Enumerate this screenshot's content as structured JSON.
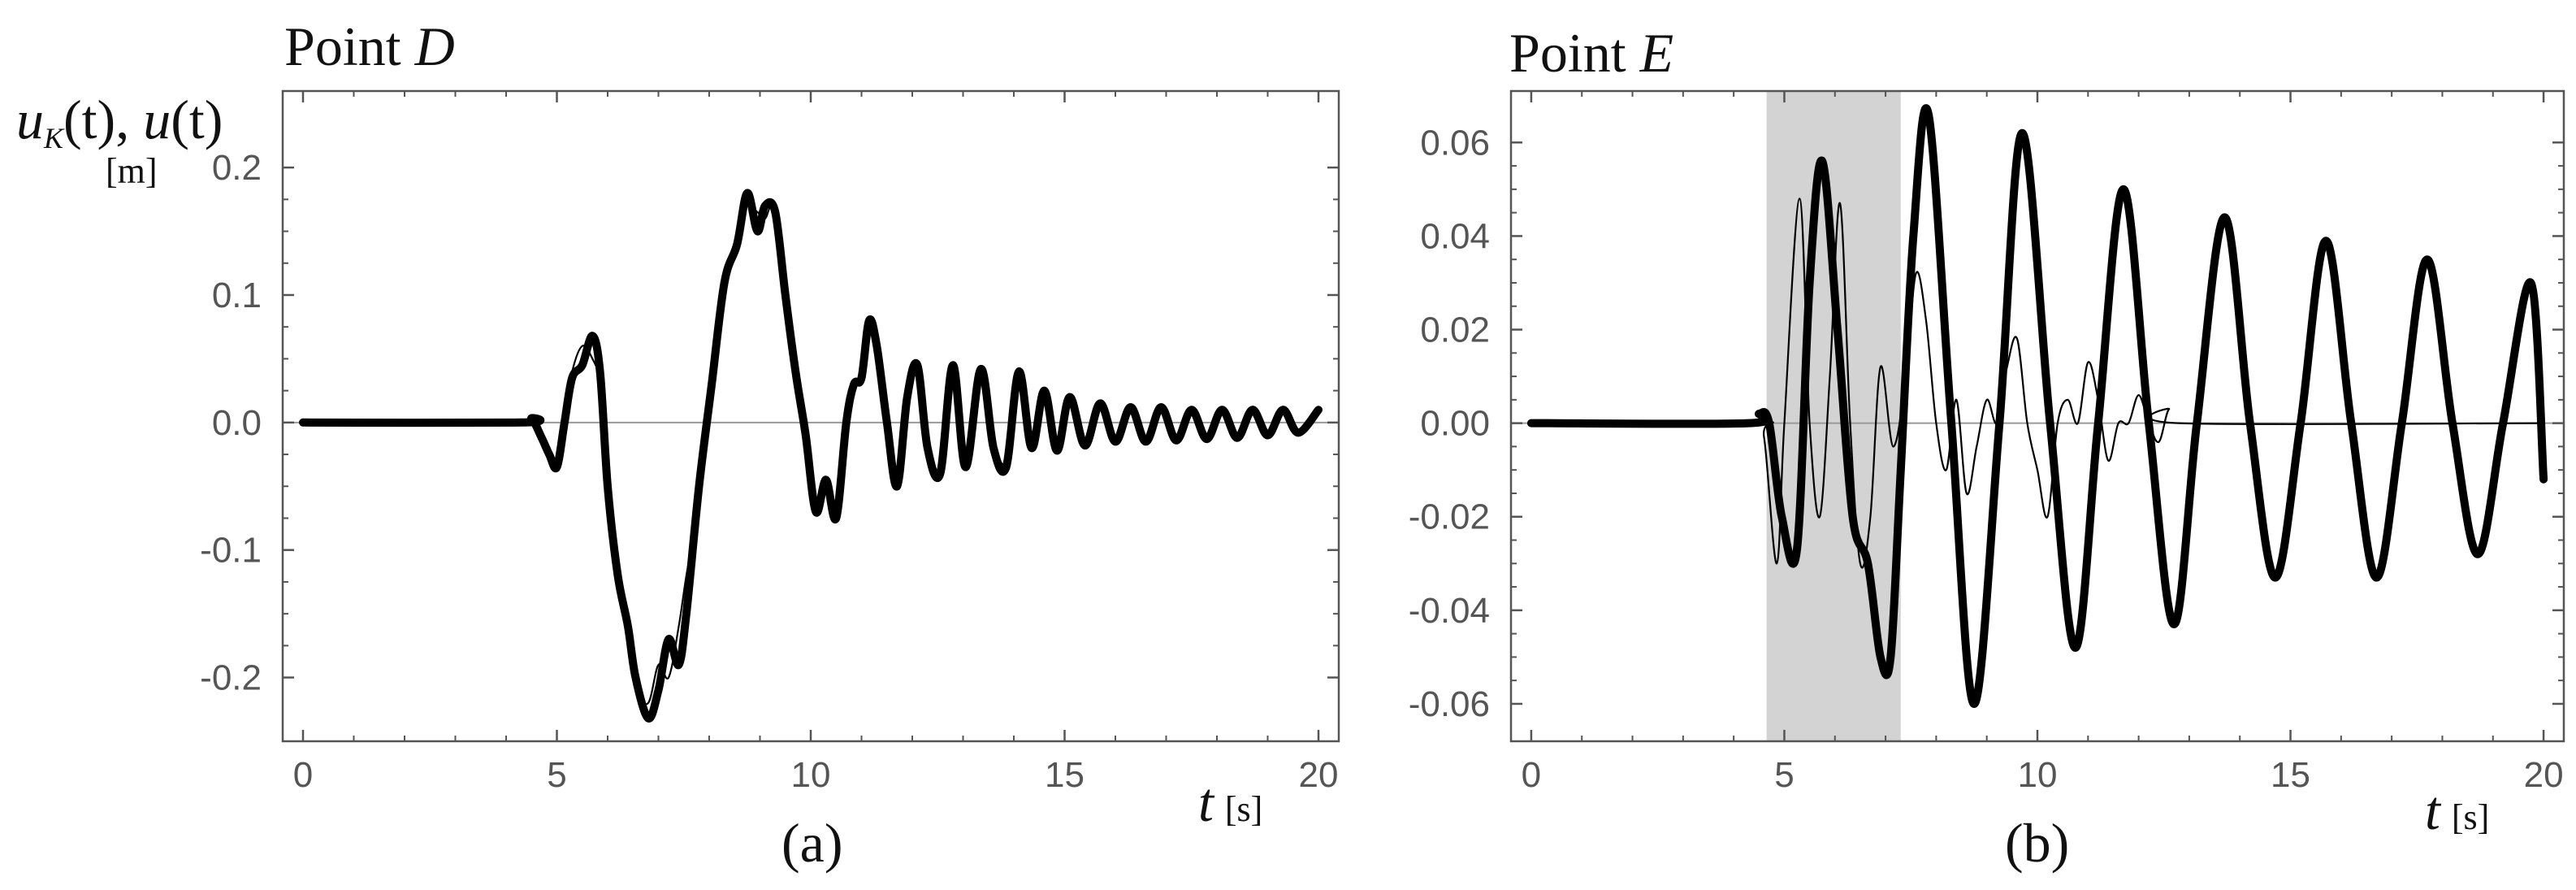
{
  "panels": [
    {
      "title_prefix": "Point ",
      "title_point": "D",
      "caption": "(a)"
    },
    {
      "title_prefix": "Point ",
      "title_point": "E",
      "caption": "(b)"
    }
  ],
  "ylabel": {
    "u": "u",
    "k": "K",
    "mid": "(t), ",
    "u2": "u",
    "end": "(t)",
    "unit": "[m]"
  },
  "xlabel": {
    "t": "t",
    "unit": "[s]"
  },
  "colors": {
    "curve": "#000000",
    "axis": "#555555",
    "zero_line": "#9a9a9a",
    "shade": "#d3d3d3"
  },
  "chart_data": [
    {
      "type": "line",
      "title": "Point D",
      "xlabel": "t [s]",
      "ylabel": "uK(t), u(t) [m]",
      "xlim": [
        -0.4,
        20.4
      ],
      "ylim": [
        -0.25,
        0.26
      ],
      "xticks": [
        0,
        5,
        10,
        15,
        20
      ],
      "xtick_labels": [
        "0",
        "5",
        "10",
        "15",
        "20"
      ],
      "yticks": [
        -0.2,
        -0.1,
        0.0,
        0.1,
        0.2
      ],
      "ytick_labels": [
        "-0.2",
        "-0.1",
        "0.0",
        "0.1",
        "0.2"
      ],
      "grid": false,
      "series": [
        {
          "style": "thick",
          "x": [
            0,
            4.3,
            4.5,
            4.7,
            4.85,
            5.0,
            5.15,
            5.3,
            5.5,
            5.7,
            5.85,
            6.0,
            6.2,
            6.4,
            6.55,
            6.8,
            7.0,
            7.2,
            7.4,
            7.55,
            7.8,
            8.05,
            8.3,
            8.55,
            8.75,
            8.95,
            9.1,
            9.3,
            9.5,
            9.7,
            9.9,
            10.1,
            10.3,
            10.5,
            10.7,
            10.85,
            11.0,
            11.15,
            11.3,
            11.5,
            11.7,
            11.9,
            12.1,
            12.3,
            12.55,
            12.8,
            13.05,
            13.35,
            13.6,
            13.85,
            14.1,
            14.35,
            14.6,
            14.85,
            15.1,
            15.4,
            15.7,
            16.0,
            16.3,
            16.6,
            16.9,
            17.2,
            17.5,
            17.8,
            18.1,
            18.4,
            18.7,
            19.0,
            19.3,
            19.6,
            20.0
          ],
          "y": [
            0.0,
            0.0,
            0.003,
            -0.012,
            -0.025,
            -0.035,
            0.0,
            0.035,
            0.045,
            0.068,
            0.04,
            -0.05,
            -0.12,
            -0.16,
            -0.2,
            -0.232,
            -0.21,
            -0.17,
            -0.19,
            -0.15,
            -0.05,
            0.03,
            0.11,
            0.14,
            0.18,
            0.15,
            0.17,
            0.165,
            0.1,
            0.04,
            -0.01,
            -0.07,
            -0.045,
            -0.075,
            0.0,
            0.03,
            0.035,
            0.08,
            0.06,
            0.0,
            -0.05,
            0.02,
            0.045,
            -0.02,
            -0.04,
            0.045,
            -0.035,
            0.042,
            -0.02,
            -0.035,
            0.04,
            -0.02,
            0.025,
            -0.022,
            0.02,
            -0.018,
            0.015,
            -0.015,
            0.012,
            -0.015,
            0.012,
            -0.014,
            0.01,
            -0.013,
            0.01,
            -0.012,
            0.01,
            -0.01,
            0.01,
            -0.008,
            0.01
          ]
        },
        {
          "style": "thin",
          "x": [
            0,
            4.3,
            4.5,
            4.7,
            4.85,
            5.0,
            5.15,
            5.3,
            5.5,
            5.7,
            5.85,
            6.0,
            6.2,
            6.4,
            6.55,
            6.8,
            7.0,
            7.2,
            7.4,
            7.55,
            7.8,
            8.05,
            8.3,
            8.55,
            8.75,
            8.95,
            9.1,
            9.3,
            9.5,
            9.7,
            9.9,
            10.1,
            10.3,
            10.5,
            10.7,
            10.85,
            11.0,
            11.15,
            11.3,
            11.5,
            11.7,
            11.9,
            12.1,
            12.3,
            12.55,
            12.8,
            13.05,
            13.35,
            13.6,
            13.85,
            14.1,
            14.35,
            14.6,
            14.85,
            15.1,
            15.4,
            15.7,
            16.0,
            16.3,
            16.6,
            16.9,
            17.2,
            17.5,
            17.8,
            18.1,
            18.4,
            18.7,
            19.0,
            19.3,
            19.6,
            20.0
          ],
          "y": [
            0.0,
            0.0,
            0.0,
            -0.008,
            -0.02,
            -0.03,
            0.005,
            0.04,
            0.06,
            0.05,
            0.03,
            -0.04,
            -0.11,
            -0.17,
            -0.21,
            -0.22,
            -0.19,
            -0.2,
            -0.16,
            -0.12,
            -0.06,
            0.04,
            0.1,
            0.15,
            0.17,
            0.165,
            0.16,
            0.17,
            0.09,
            0.05,
            0.0,
            -0.06,
            -0.05,
            -0.06,
            0.01,
            0.025,
            0.04,
            0.07,
            0.05,
            -0.01,
            -0.045,
            0.025,
            0.035,
            -0.015,
            -0.035,
            0.04,
            -0.03,
            0.035,
            -0.015,
            -0.03,
            0.035,
            -0.015,
            0.02,
            -0.018,
            0.015,
            -0.014,
            0.012,
            -0.012,
            0.01,
            -0.012,
            0.01,
            -0.011,
            0.008,
            -0.01,
            0.008,
            -0.01,
            0.008,
            -0.008,
            0.008,
            -0.006,
            0.008
          ]
        }
      ]
    },
    {
      "type": "line",
      "title": "Point E",
      "xlabel": "t [s]",
      "ylabel": "",
      "xlim": [
        -0.4,
        20.4
      ],
      "ylim": [
        -0.068,
        0.071
      ],
      "xticks": [
        0,
        5,
        10,
        15,
        20
      ],
      "xtick_labels": [
        "0",
        "5",
        "10",
        "15",
        "20"
      ],
      "yticks": [
        -0.06,
        -0.04,
        -0.02,
        0.0,
        0.02,
        0.04,
        0.06
      ],
      "ytick_labels": [
        "-0.06",
        "-0.04",
        "-0.02",
        "0.00",
        "0.02",
        "0.04",
        "0.06"
      ],
      "grid": false,
      "shaded_x_range": [
        4.65,
        7.3
      ],
      "series": [
        {
          "style": "thick",
          "x": [
            0,
            4.3,
            4.5,
            4.7,
            4.95,
            5.25,
            5.5,
            5.75,
            6.05,
            6.35,
            6.65,
            6.9,
            7.1,
            7.3,
            7.55,
            7.85,
            8.3,
            8.75,
            9.25,
            9.7,
            10.25,
            10.75,
            11.2,
            11.7,
            12.2,
            12.7,
            13.15,
            13.7,
            14.2,
            14.7,
            15.2,
            15.7,
            16.2,
            16.7,
            17.2,
            17.7,
            18.2,
            18.7,
            19.2,
            19.75,
            20.0
          ],
          "y": [
            0.0,
            0.0,
            0.002,
            0.0,
            -0.02,
            -0.027,
            0.03,
            0.056,
            0.02,
            -0.02,
            -0.03,
            -0.05,
            -0.05,
            -0.01,
            0.04,
            0.066,
            0.0,
            -0.06,
            0.0,
            0.062,
            0.0,
            -0.048,
            0.0,
            0.05,
            0.0,
            -0.043,
            0.0,
            0.044,
            0.0,
            -0.033,
            0.0,
            0.039,
            0.0,
            -0.033,
            0.0,
            0.035,
            0.0,
            -0.028,
            0.0,
            0.03,
            -0.012
          ]
        },
        {
          "style": "thin",
          "x": [
            0,
            4.4,
            4.6,
            4.85,
            5.0,
            5.3,
            5.5,
            5.7,
            5.9,
            6.1,
            6.3,
            6.5,
            6.7,
            6.9,
            7.15,
            7.4,
            7.6,
            7.8,
            8.0,
            8.2,
            8.4,
            8.6,
            8.8,
            9.0,
            9.2,
            9.4,
            9.6,
            9.8,
            10.0,
            10.2,
            10.4,
            10.6,
            10.8,
            11.0,
            11.2,
            11.4,
            11.6,
            11.8,
            12.0,
            12.2,
            12.4,
            12.6,
            12.8,
            20.0
          ],
          "y": [
            0.0,
            0.0,
            -0.003,
            -0.03,
            0.0,
            0.048,
            0.0,
            -0.02,
            0.01,
            0.047,
            0.0,
            -0.03,
            -0.02,
            0.012,
            -0.005,
            0.01,
            0.032,
            0.022,
            0.0,
            -0.01,
            0.005,
            -0.015,
            -0.005,
            0.005,
            0.0,
            0.012,
            0.018,
            0.0,
            -0.01,
            -0.02,
            0.0,
            0.005,
            0.0,
            0.013,
            0.005,
            -0.008,
            0.0,
            0.0,
            0.006,
            0.0,
            -0.004,
            0.003,
            0.0,
            0.0
          ]
        }
      ]
    }
  ]
}
